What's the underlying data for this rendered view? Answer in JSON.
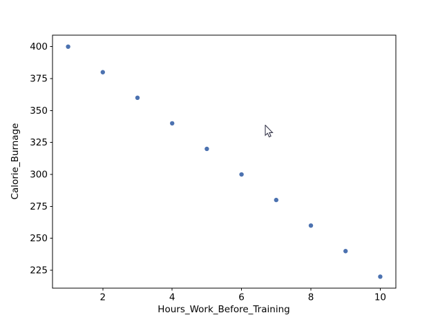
{
  "chart_data": {
    "type": "scatter",
    "title": "",
    "xlabel": "Hours_Work_Before_Training",
    "ylabel": "Calorie_Burnage",
    "x": [
      1,
      2,
      3,
      4,
      5,
      6,
      7,
      8,
      9,
      10
    ],
    "y": [
      400,
      380,
      360,
      340,
      320,
      300,
      280,
      260,
      240,
      220
    ],
    "xticks": [
      2,
      4,
      6,
      8,
      10
    ],
    "yticks": [
      225,
      250,
      275,
      300,
      325,
      350,
      375,
      400
    ],
    "xlim": [
      0.55,
      10.45
    ],
    "ylim": [
      211,
      409
    ],
    "grid": false,
    "legend": null,
    "marker_color": "#4C72B0",
    "axis_color": "#000000",
    "background_color": "#ffffff",
    "marker_radius_px": 3.2
  },
  "cursor": {
    "fill": "#ffffff",
    "outline": "#36364a"
  }
}
